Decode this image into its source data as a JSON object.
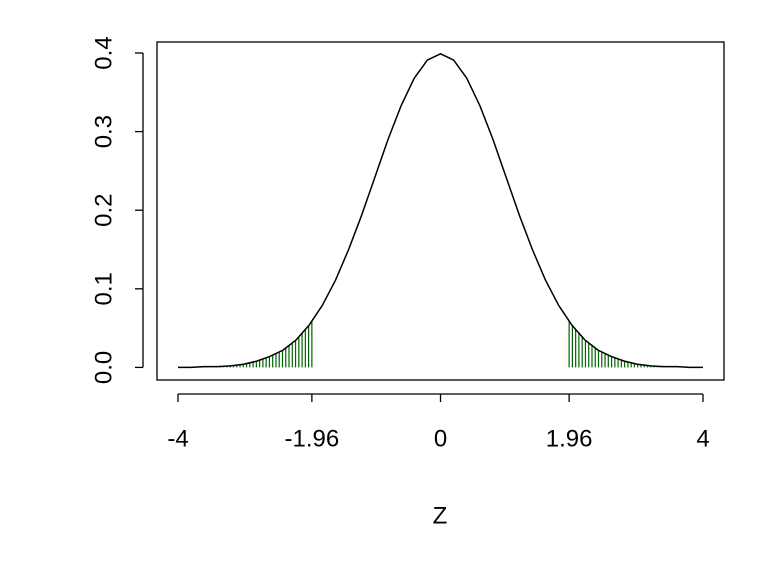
{
  "chart_data": {
    "type": "line",
    "x_label": "Z",
    "x": [
      -4,
      -3.8,
      -3.6,
      -3.4,
      -3.2,
      -3,
      -2.8,
      -2.6,
      -2.4,
      -2.2,
      -2,
      -1.8,
      -1.6,
      -1.4,
      -1.2,
      -1,
      -0.8,
      -0.6,
      -0.4,
      -0.2,
      0,
      0.2,
      0.4,
      0.6,
      0.8,
      1,
      1.2,
      1.4,
      1.6,
      1.8,
      2,
      2.2,
      2.4,
      2.6,
      2.8,
      3,
      3.2,
      3.4,
      3.6,
      3.8,
      4
    ],
    "values": [
      0.0,
      0.0,
      0.001,
      0.001,
      0.002,
      0.004,
      0.008,
      0.014,
      0.022,
      0.035,
      0.054,
      0.079,
      0.111,
      0.15,
      0.194,
      0.242,
      0.29,
      0.333,
      0.368,
      0.391,
      0.399,
      0.391,
      0.368,
      0.333,
      0.29,
      0.242,
      0.194,
      0.15,
      0.111,
      0.079,
      0.054,
      0.035,
      0.022,
      0.014,
      0.008,
      0.004,
      0.002,
      0.001,
      0.001,
      0.0,
      0.0
    ],
    "color": "#000000",
    "shade": [
      {
        "from": -4,
        "to": -1.96
      },
      {
        "from": 1.96,
        "to": 4
      }
    ],
    "shade_color": "#006400",
    "xlim": [
      -4.32,
      4.32
    ],
    "xticks": [
      -4,
      -1.96,
      0,
      1.96,
      4
    ],
    "ylim": [
      -0.016,
      0.414
    ],
    "yticks": [
      {
        "value": 0,
        "label": "0.0"
      },
      0.1,
      0.2,
      0.3,
      0.4
    ]
  }
}
